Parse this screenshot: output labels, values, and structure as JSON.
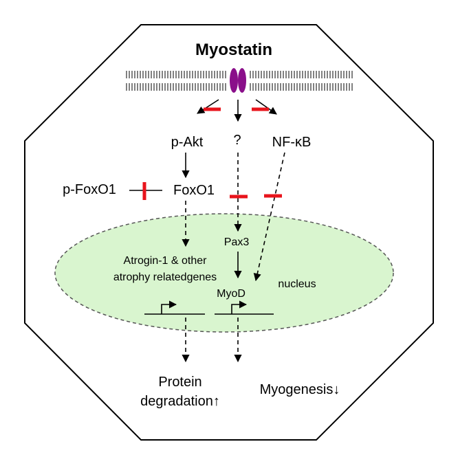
{
  "diagram": {
    "title": "Myostatin",
    "nodes": {
      "p_akt": "p-Akt",
      "unknown": "?",
      "nf_kb": "NF-κB",
      "p_foxo1": "p-FoxO1",
      "foxo1": "FoxO1",
      "pax3": "Pax3",
      "atrogin_line1": "Atrogin-1 & other",
      "atrogin_line2": "atrophy relatedgenes",
      "myod": "MyoD",
      "nucleus": "nucleus",
      "protein_line1": "Protein",
      "protein_line2": "degradation↑",
      "myogenesis": "Myogenesis↓"
    },
    "colors": {
      "outline": "#000000",
      "nucleus_fill": "#d9f5cf",
      "receptor": "#8a0f8a",
      "inhibition": "#e8141c"
    }
  }
}
